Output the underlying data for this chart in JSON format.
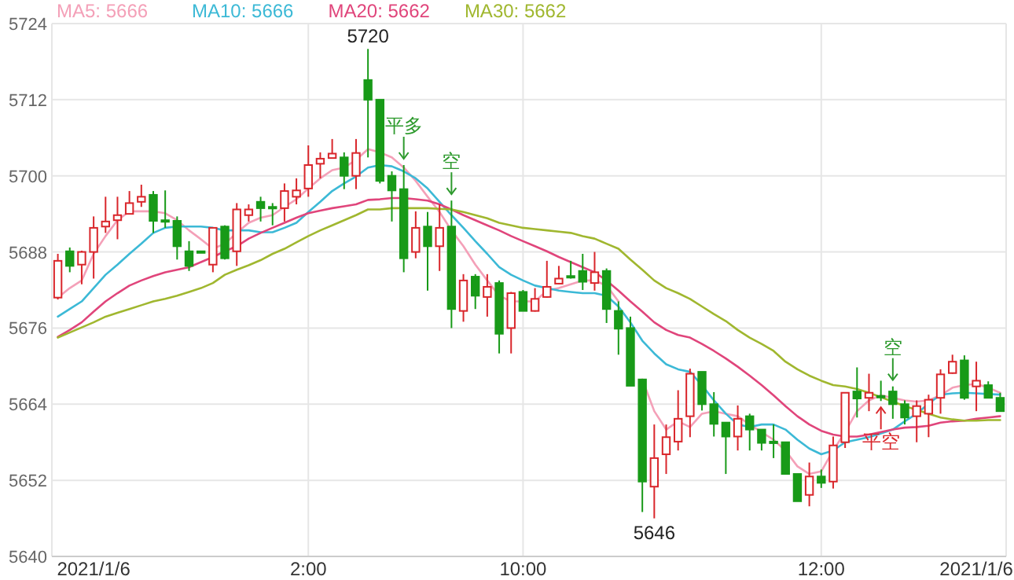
{
  "chart_data": {
    "type": "candlestick",
    "categories": [
      null,
      null,
      null,
      "2021/1/6",
      null,
      null,
      null,
      null,
      null,
      null,
      null,
      null,
      null,
      null,
      null,
      null,
      null,
      null,
      null,
      null,
      null,
      "2:00",
      null,
      null,
      null,
      null,
      null,
      null,
      null,
      null,
      null,
      null,
      null,
      null,
      null,
      null,
      null,
      null,
      null,
      "10:00",
      null,
      null,
      null,
      null,
      null,
      null,
      null,
      null,
      null,
      null,
      null,
      null,
      null,
      null,
      null,
      null,
      null,
      null,
      null,
      null,
      null,
      null,
      null,
      null,
      "12:00",
      null,
      null,
      null,
      null,
      null,
      null,
      null,
      null,
      null,
      null,
      null,
      null,
      "2021/1/6",
      null,
      null
    ],
    "value_labels": [
      null,
      null,
      null,
      null,
      null,
      null,
      null,
      null,
      null,
      null,
      null,
      null,
      null,
      null,
      null,
      null,
      null,
      null,
      null,
      null,
      null,
      null,
      null,
      null,
      null,
      null,
      "5720",
      null,
      null,
      null,
      null,
      null,
      null,
      null,
      null,
      null,
      null,
      null,
      null,
      null,
      null,
      null,
      null,
      null,
      null,
      null,
      null,
      null,
      null,
      null,
      "5646",
      null,
      null,
      null,
      null,
      null,
      null,
      null,
      null,
      null,
      null,
      null,
      null,
      null,
      null,
      null,
      null,
      null,
      null,
      null,
      null,
      null,
      null,
      null,
      null,
      null,
      null,
      null,
      null,
      null
    ],
    "ohlc": [
      [
        5680.8,
        5687.7,
        5680.5,
        5686.6
      ],
      [
        5688.1,
        5688.7,
        5684.8,
        5685.8
      ],
      [
        5686.0,
        5688.2,
        5682.9,
        5688.0
      ],
      [
        5688.0,
        5693.6,
        5683.8,
        5691.8
      ],
      [
        5692.0,
        5696.7,
        5691.0,
        5692.8
      ],
      [
        5693.0,
        5696.7,
        5690.0,
        5693.8
      ],
      [
        5694.0,
        5697.6,
        5693.9,
        5695.7
      ],
      [
        5695.9,
        5698.6,
        5695.1,
        5696.7
      ],
      [
        5697.0,
        5697.6,
        5691.0,
        5692.9
      ],
      [
        5693.0,
        5697.7,
        5691.8,
        5692.8
      ],
      [
        5692.9,
        5693.6,
        5686.8,
        5688.9
      ],
      [
        5688.1,
        5689.7,
        5685.0,
        5685.8
      ],
      [
        5688.1,
        5688.2,
        5687.9,
        5688.0
      ],
      [
        5686.0,
        5691.9,
        5684.8,
        5691.8
      ],
      [
        5692.0,
        5692.2,
        5686.8,
        5687.0
      ],
      [
        5688.1,
        5695.7,
        5685.8,
        5694.7
      ],
      [
        5693.8,
        5695.5,
        5692.8,
        5694.7
      ],
      [
        5695.9,
        5696.7,
        5692.8,
        5694.9
      ],
      [
        5695.1,
        5695.7,
        5692.2,
        5695.0
      ],
      [
        5694.9,
        5698.8,
        5692.8,
        5697.6
      ],
      [
        5696.7,
        5699.6,
        5695.5,
        5697.7
      ],
      [
        5698.0,
        5704.8,
        5696.7,
        5701.7
      ],
      [
        5701.9,
        5703.7,
        5699.6,
        5702.7
      ],
      [
        5702.8,
        5705.8,
        5702.7,
        5703.5
      ],
      [
        5702.9,
        5703.7,
        5697.9,
        5700.0
      ],
      [
        5700.0,
        5705.8,
        5697.9,
        5703.6
      ],
      [
        5715.1,
        5720,
        5702.9,
        5712.0
      ],
      [
        5712.0,
        5712.0,
        5698.8,
        5699.2
      ],
      [
        5700.0,
        5700.7,
        5692.8,
        5697.7
      ],
      [
        5697.9,
        5701.7,
        5684.8,
        5687.0
      ],
      [
        5688.0,
        5694.4,
        5687.0,
        5691.8
      ],
      [
        5692.0,
        5694.3,
        5681.9,
        5688.9
      ],
      [
        5688.9,
        5695.5,
        5685.0,
        5691.8
      ],
      [
        5692.0,
        5696.1,
        5676.0,
        5679.0
      ],
      [
        5678.7,
        5684.5,
        5677.0,
        5683.5
      ],
      [
        5684.1,
        5684.5,
        5679.0,
        5681.1
      ],
      [
        5680.9,
        5684.5,
        5677.8,
        5682.5
      ],
      [
        5683.1,
        5683.5,
        5672.0,
        5675.1
      ],
      [
        5676.0,
        5681.7,
        5672.0,
        5681.5
      ],
      [
        5681.7,
        5682.0,
        5678.7,
        5678.7
      ],
      [
        5678.7,
        5682.3,
        5678.6,
        5680.6
      ],
      [
        5680.9,
        5686.6,
        5680.8,
        5682.5
      ],
      [
        5683.0,
        5685.8,
        5682.9,
        5683.8
      ],
      [
        5684.2,
        5686.6,
        5683.8,
        5684.1
      ],
      [
        5685.0,
        5687.7,
        5682.0,
        5683.3
      ],
      [
        5683.1,
        5688.0,
        5681.9,
        5684.8
      ],
      [
        5685.0,
        5685.4,
        5676.8,
        5679.0
      ],
      [
        5678.7,
        5680.2,
        5671.8,
        5675.9
      ],
      [
        5676.0,
        5677.8,
        5666.9,
        5666.9
      ],
      [
        5667.9,
        5667.9,
        5647.0,
        5651.8
      ],
      [
        5651.0,
        5660.8,
        5646,
        5655.5
      ],
      [
        5656.1,
        5660.8,
        5653.0,
        5658.8
      ],
      [
        5658.1,
        5666.2,
        5656.7,
        5661.7
      ],
      [
        5662.1,
        5669.6,
        5658.8,
        5668.8
      ],
      [
        5669.1,
        5669.1,
        5663.0,
        5664.0
      ],
      [
        5664.0,
        5665.9,
        5658.9,
        5660.9
      ],
      [
        5661.1,
        5661.1,
        5653.0,
        5658.9
      ],
      [
        5658.9,
        5663.8,
        5656.7,
        5661.7
      ],
      [
        5662.1,
        5662.5,
        5656.7,
        5660.0
      ],
      [
        5660.0,
        5660.0,
        5656.7,
        5657.9
      ],
      [
        5658.1,
        5660.8,
        5655.5,
        5658.0
      ],
      [
        5658.0,
        5658.0,
        5653.0,
        5653.0
      ],
      [
        5653.0,
        5653.0,
        5648.7,
        5648.7
      ],
      [
        5649.7,
        5654.8,
        5647.9,
        5652.6
      ],
      [
        5652.6,
        5653.7,
        5650.8,
        5651.6
      ],
      [
        5651.8,
        5658.9,
        5650.7,
        5657.5
      ],
      [
        5658.0,
        5665.8,
        5657.1,
        5665.8
      ],
      [
        5666.0,
        5669.8,
        5661.9,
        5664.9
      ],
      [
        5665.0,
        5668.8,
        5662.9,
        5665.8
      ],
      [
        5665.3,
        5667.7,
        5664.5,
        5665.2
      ],
      [
        5666.0,
        5666.8,
        5661.7,
        5664.0
      ],
      [
        5664.0,
        5664.6,
        5660.8,
        5661.9
      ],
      [
        5662.1,
        5664.6,
        5658.0,
        5663.7
      ],
      [
        5662.5,
        5665.5,
        5658.8,
        5664.7
      ],
      [
        5665.0,
        5669.5,
        5662.5,
        5668.7
      ],
      [
        5668.9,
        5671.8,
        5668.8,
        5670.7
      ],
      [
        5670.9,
        5671.7,
        5664.7,
        5665.0
      ],
      [
        5666.8,
        5670.7,
        5662.9,
        5667.7
      ],
      [
        5667.0,
        5667.6,
        5665.0,
        5665.0
      ],
      [
        5665.0,
        5665.8,
        5662.9,
        5662.9
      ]
    ],
    "series": [
      {
        "name": "MA5: 5666",
        "type": "line",
        "color": "#f4a0b8",
        "values": [
          5680.8,
          5682.3,
          5683.5,
          5687.7,
          5690.5,
          5693.0,
          5694.4,
          5694.4,
          5694.4,
          5694.1,
          5693.0,
          5691.4,
          5690.0,
          5688.5,
          5689.3,
          5691.0,
          5692.6,
          5693.4,
          5693.8,
          5695.1,
          5696.3,
          5698.0,
          5699.6,
          5700.9,
          5701.3,
          5702.5,
          5704.2,
          5703.7,
          5702.9,
          5701.3,
          5699.2,
          5696.7,
          5694.3,
          5691.4,
          5688.9,
          5686.0,
          5683.5,
          5681.1,
          5680.2,
          5680.2,
          5680.2,
          5681.9,
          5682.3,
          5682.9,
          5683.5,
          5683.5,
          5682.7,
          5680.2,
          null,
          5667.9,
          5662.9,
          5660.0,
          5661.3,
          5660.4,
          5662.5,
          5662.9,
          5662.5,
          5662.1,
          5660.8,
          5659.6,
          5658.4,
          5656.7,
          5654.2,
          5653.0,
          5653.4,
          5656.7,
          5659.6,
          5662.9,
          5664.6,
          5665.4,
          5665.0,
          5664.6,
          5664.4,
          5664.6,
          5665.4,
          5666.6,
          5667.0,
          5667.2,
          5666.6,
          5665.8
        ]
      },
      {
        "name": "MA10: 5666",
        "type": "line",
        "color": "#3cb9d6",
        "values": [
          5677.8,
          5679.0,
          5680.2,
          5682.3,
          5684.4,
          5686.0,
          5687.7,
          5689.3,
          5691.0,
          5691.8,
          5692.0,
          5692.0,
          5692.0,
          5691.8,
          5691.4,
          5691.4,
          5691.4,
          5691.1,
          5691.1,
          5691.8,
          5692.6,
          5694.3,
          5695.9,
          5697.6,
          5698.8,
          5699.9,
          5701.3,
          5701.7,
          5701.5,
          5700.7,
          5699.6,
          5698.0,
          5695.9,
          5693.8,
          5691.8,
          5689.7,
          5687.7,
          5685.6,
          5684.4,
          5683.5,
          5682.7,
          5682.3,
          5681.9,
          5681.7,
          5681.5,
          5681.5,
          5681.1,
          5679.4,
          5676.9,
          5674.0,
          5672.0,
          5670.3,
          5669.5,
          5669.1,
          5667.0,
          5664.6,
          5662.5,
          5660.8,
          5660.4,
          5660.8,
          5660.8,
          5660.0,
          5658.4,
          5657.0,
          5656.1,
          5656.7,
          5658.0,
          5658.4,
          5658.8,
          5659.4,
          5660.0,
          5661.3,
          5662.5,
          5664.1,
          5665.5,
          5665.7,
          5665.8,
          5665.7,
          5665.6,
          5665.5
        ]
      },
      {
        "name": "MA20: 5662",
        "type": "line",
        "color": "#e0457b",
        "values": [
          5674.6,
          5675.7,
          5676.9,
          5678.6,
          5680.2,
          5681.5,
          5682.7,
          5683.5,
          5684.2,
          5684.8,
          5685.2,
          5685.6,
          5686.4,
          5687.2,
          5688.1,
          5688.9,
          5690.1,
          5691.0,
          5691.8,
          5692.6,
          5693.4,
          5694.1,
          5694.5,
          5694.9,
          5695.2,
          5695.5,
          5696.2,
          5696.3,
          5696.5,
          5696.5,
          5696.3,
          5696.1,
          5695.5,
          5694.7,
          5693.8,
          5693.0,
          5692.2,
          5691.4,
          5690.5,
          5689.7,
          5688.9,
          5688.1,
          5687.2,
          5686.4,
          5685.6,
          5684.8,
          5683.5,
          5681.9,
          5680.2,
          5678.6,
          5676.9,
          5675.7,
          5674.9,
          5674.5,
          5673.5,
          5672.4,
          5671.2,
          5669.9,
          5668.5,
          5667.0,
          5665.4,
          5663.7,
          5662.1,
          5660.8,
          5659.8,
          5659.2,
          5658.9,
          5658.9,
          5659.2,
          5659.6,
          5660.0,
          5660.3,
          5660.4,
          5660.6,
          5661.1,
          5661.3,
          5661.4,
          5661.7,
          5661.9,
          5662.1
        ]
      },
      {
        "name": "MA30: 5662",
        "type": "line",
        "color": "#a0b72f",
        "values": [
          5674.5,
          5675.3,
          5676.1,
          5676.9,
          5677.8,
          5678.4,
          5679.0,
          5679.6,
          5680.2,
          5680.6,
          5681.1,
          5681.7,
          5682.3,
          5683.1,
          5684.4,
          5685.2,
          5685.9,
          5686.7,
          5687.7,
          5688.5,
          5689.5,
          5690.5,
          5691.4,
          5692.2,
          5693.0,
          5693.8,
          5694.7,
          5694.7,
          5694.9,
          5694.9,
          5694.9,
          5694.9,
          5694.8,
          5694.7,
          5694.3,
          5693.8,
          5693.3,
          5692.6,
          5692.2,
          5691.8,
          5691.6,
          5691.4,
          5691.2,
          5691.0,
          5690.5,
          5690.1,
          5689.3,
          5688.5,
          5686.8,
          5685.2,
          5683.5,
          5682.3,
          5681.5,
          5680.6,
          5679.4,
          5678.2,
          5677.1,
          5675.7,
          5674.5,
          5673.5,
          5672.4,
          5670.7,
          5669.5,
          5668.5,
          5667.7,
          5667.0,
          5666.8,
          5666.4,
          5665.8,
          5665.1,
          5664.4,
          5663.7,
          5663.1,
          5662.5,
          5661.9,
          5661.6,
          5661.4,
          5661.4,
          5661.5,
          5661.5
        ]
      }
    ],
    "ylim": [
      5640,
      5724
    ],
    "yticks": [
      5640,
      5652,
      5664,
      5676,
      5688,
      5700,
      5712,
      5724
    ],
    "grid": true,
    "legend": "top left",
    "annotations": [
      {
        "text": "平多",
        "y": 5701.7
      },
      {
        "text": "空",
        "y": 5696.1
      },
      {
        "text": "空",
        "y": 5666.8
      },
      {
        "text": "平空",
        "y": 5664.5
      }
    ]
  }
}
